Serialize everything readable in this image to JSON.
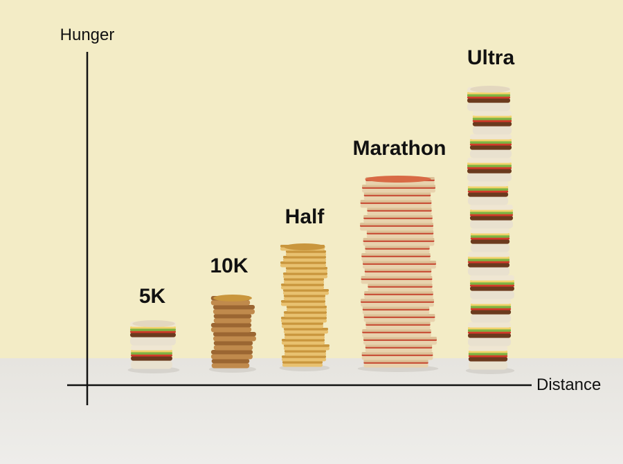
{
  "axes": {
    "y_label": "Hunger",
    "x_label": "Distance"
  },
  "columns": [
    {
      "label": "5K"
    },
    {
      "label": "10K"
    },
    {
      "label": "Half"
    },
    {
      "label": "Marathon"
    },
    {
      "label": "Ultra"
    }
  ]
}
